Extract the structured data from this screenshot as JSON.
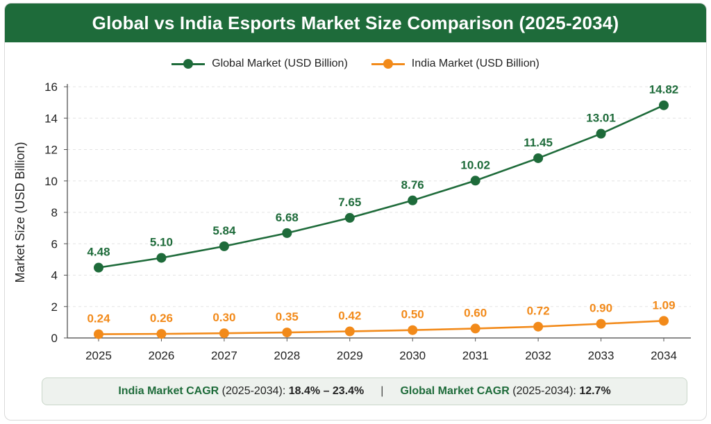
{
  "title": "Global vs India Esports Market Size Comparison (2025-2034)",
  "legend": {
    "global": "Global Market (USD Billion)",
    "india": "India Market (USD Billion)"
  },
  "colors": {
    "global": "#1e6b3a",
    "india": "#f28a1a",
    "title_bg": "#1e6b3a"
  },
  "footer": {
    "india_label": "India Market CAGR",
    "india_period": " (2025-2034): ",
    "india_value": "18.4% – 23.4%",
    "separator": "|",
    "global_label": "Global Market CAGR",
    "global_period": " (2025-2034): ",
    "global_value": "12.7%"
  },
  "chart_data": {
    "type": "line",
    "title": "Global vs India Esports Market Size Comparison (2025-2034)",
    "xlabel": "",
    "ylabel": "Market Size (USD Billion)",
    "ylim": [
      0,
      16
    ],
    "yticks": [
      0,
      2,
      4,
      6,
      8,
      10,
      12,
      14,
      16
    ],
    "grid": true,
    "legend_position": "top-center",
    "x": [
      "2025",
      "2026",
      "2027",
      "2028",
      "2029",
      "2030",
      "2031",
      "2032",
      "2033",
      "2034"
    ],
    "series": [
      {
        "name": "Global Market (USD Billion)",
        "values": [
          4.48,
          5.1,
          5.84,
          6.68,
          7.65,
          8.76,
          10.02,
          11.45,
          13.01,
          14.82
        ],
        "labels": [
          "4.48",
          "5.10",
          "5.84",
          "6.68",
          "7.65",
          "8.76",
          "10.02",
          "11.45",
          "13.01",
          "14.82"
        ]
      },
      {
        "name": "India Market (USD Billion)",
        "values": [
          0.24,
          0.26,
          0.3,
          0.35,
          0.42,
          0.5,
          0.6,
          0.72,
          0.9,
          1.09
        ],
        "labels": [
          "0.24",
          "0.26",
          "0.30",
          "0.35",
          "0.42",
          "0.50",
          "0.60",
          "0.72",
          "0.90",
          "1.09"
        ]
      }
    ]
  }
}
